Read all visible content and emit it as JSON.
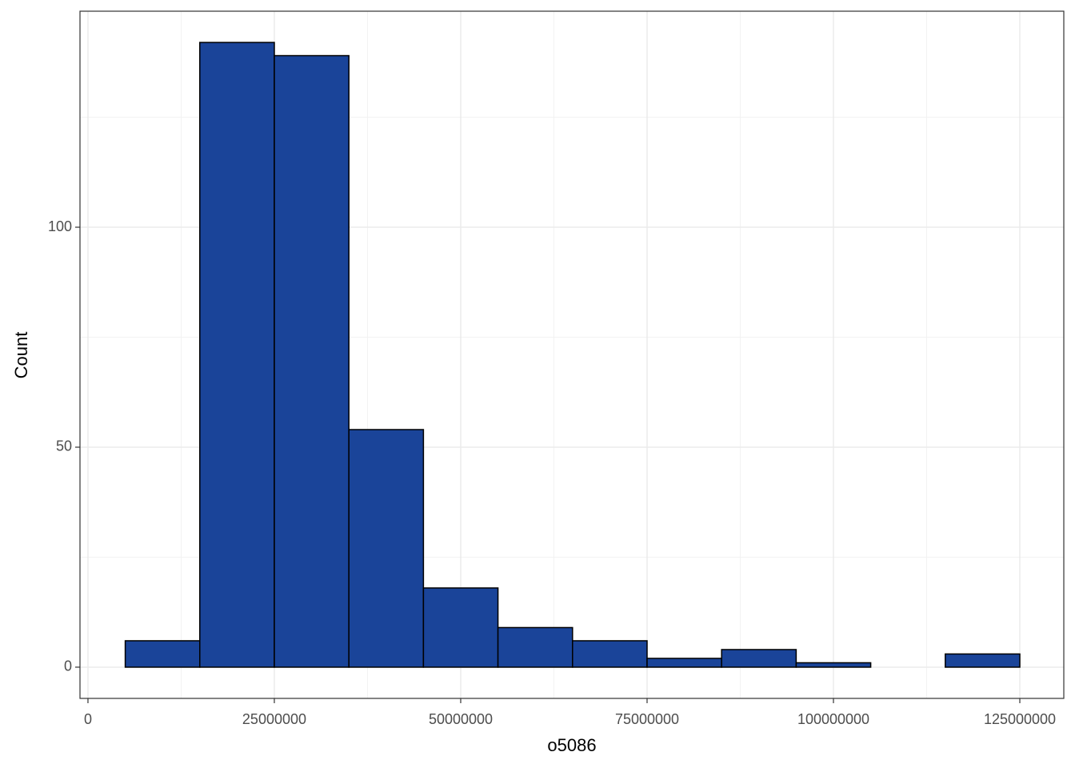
{
  "chart_data": {
    "type": "histogram",
    "xlabel": "o5086",
    "ylabel": "Count",
    "bins": [
      5000000,
      15000000,
      25000000,
      35000000,
      45000000,
      55000000,
      65000000,
      75000000,
      85000000,
      95000000,
      105000000,
      115000000,
      125000000
    ],
    "counts": [
      6,
      142,
      139,
      54,
      18,
      9,
      6,
      2,
      4,
      1,
      0,
      3
    ],
    "color": "#1a4499",
    "edgecolor": "#000000",
    "xlim": [
      -1070000,
      130900000
    ],
    "xticks": [
      0,
      25000000,
      50000000,
      75000000,
      100000000,
      125000000
    ],
    "xticks_minor": [
      12500000,
      37500000,
      62500000,
      87500000,
      112500000
    ],
    "ylim": [
      -7.1,
      149.1
    ],
    "yticks": [
      0,
      50,
      100
    ],
    "yticks_minor": [
      25,
      75,
      125
    ],
    "grid": true
  }
}
